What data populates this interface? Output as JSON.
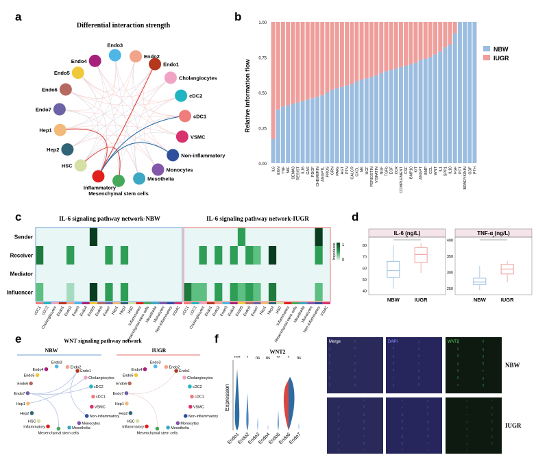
{
  "panel_letters": {
    "a": "a",
    "b": "b",
    "c": "c",
    "d": "d",
    "e": "e",
    "f": "f"
  },
  "colors": {
    "nbw": "#9bbde0",
    "iugr": "#ef9e9b",
    "heat_dark": "#0a3d1f",
    "heat_mid": "#2e9e57",
    "heat_light": "#bfe7cf",
    "violin_blue": "#2d6ca3",
    "violin_red": "#d9463f"
  },
  "panel_a": {
    "title": "Differential interaction strength",
    "nodes": [
      {
        "label": "Endo1",
        "color": "#b5381d"
      },
      {
        "label": "Cholangiocytes",
        "color": "#f0a3c4"
      },
      {
        "label": "cDC2",
        "color": "#21b5c1"
      },
      {
        "label": "cDC1",
        "color": "#ef7d7b"
      },
      {
        "label": "VSMC",
        "color": "#d8336e"
      },
      {
        "label": "Non-inflammatory",
        "color": "#2e4f9c"
      },
      {
        "label": "Monocytes",
        "color": "#8256a8"
      },
      {
        "label": "Mesothelia",
        "color": "#3ca8c3"
      },
      {
        "label": "Mesenchymal stem cells",
        "color": "#46a85a"
      },
      {
        "label": "Inflammatory",
        "color": "#e0201f"
      },
      {
        "label": "HSC",
        "color": "#d4e0a4"
      },
      {
        "label": "Hep2",
        "color": "#2f6375"
      },
      {
        "label": "Hep1",
        "color": "#f3b978"
      },
      {
        "label": "Endo7",
        "color": "#6b63a6"
      },
      {
        "label": "Endo6",
        "color": "#b5695f"
      },
      {
        "label": "Endo5",
        "color": "#f0c93a"
      },
      {
        "label": "Endo4",
        "color": "#a7207c"
      },
      {
        "label": "Endo3",
        "color": "#4fb6e6"
      },
      {
        "label": "Endo2",
        "color": "#f2a48a"
      }
    ]
  },
  "panel_b": {
    "chart_data": {
      "type": "bar",
      "stacked": true,
      "ylabel": "Relative information flow",
      "ylim": [
        0,
        1
      ],
      "yticks": [
        "0.00",
        "0.25",
        "0.50",
        "0.75",
        "1.00"
      ],
      "categories": [
        "IL6",
        "EGN",
        "TNF",
        "MIF",
        "SEMA3",
        "RESIST",
        "IL16",
        "GAS",
        "PDGF",
        "CHEMERIN",
        "ANGPTL",
        "PROS",
        "GRN",
        "PARs",
        "AGT",
        "PTN",
        "CALCR",
        "CXCL",
        "MK",
        "HGF",
        "PERIOSTIN",
        "VISFATIN",
        "NGF",
        "TGFb",
        "EGF",
        "XCR",
        "COMPLEMENT",
        "CSF",
        "BMP10",
        "KIT",
        "ANGPT",
        "BMP",
        "CCL",
        "WNT",
        "IL1",
        "SPP1",
        "IL10",
        "FGF",
        "PCT",
        "BRADYKININ",
        "GDF",
        "PTH"
      ],
      "series": [
        {
          "name": "NBW",
          "values": [
            0.17,
            0.38,
            0.4,
            0.41,
            0.42,
            0.43,
            0.44,
            0.45,
            0.46,
            0.47,
            0.48,
            0.5,
            0.52,
            0.53,
            0.54,
            0.55,
            0.56,
            0.58,
            0.59,
            0.6,
            0.61,
            0.62,
            0.64,
            0.65,
            0.66,
            0.67,
            0.68,
            0.69,
            0.7,
            0.71,
            0.73,
            0.74,
            0.75,
            0.77,
            0.79,
            0.82,
            0.84,
            0.92,
            1.0,
            1.0,
            1.0,
            1.0
          ]
        },
        {
          "name": "IUGR",
          "values": [
            0.83,
            0.62,
            0.6,
            0.59,
            0.58,
            0.57,
            0.56,
            0.55,
            0.54,
            0.53,
            0.52,
            0.5,
            0.48,
            0.47,
            0.46,
            0.45,
            0.44,
            0.42,
            0.41,
            0.4,
            0.39,
            0.38,
            0.36,
            0.35,
            0.34,
            0.33,
            0.32,
            0.31,
            0.3,
            0.29,
            0.27,
            0.26,
            0.25,
            0.23,
            0.21,
            0.18,
            0.16,
            0.08,
            0,
            0,
            0,
            0
          ]
        }
      ],
      "legend_position": "right"
    }
  },
  "panel_c": {
    "titles": [
      "IL-6 signaling pathway network-NBW",
      "IL-6 signaling pathway network-IUGR"
    ],
    "rows": [
      "Sender",
      "Receiver",
      "Mediator",
      "Influencer"
    ],
    "columns_left": [
      "cDC1",
      "cDC2",
      "Cholangiocytes",
      "Endo1",
      "Endo2",
      "Endo3",
      "Endo4",
      "Endo5",
      "Endo6",
      "Endo7",
      "Hep1",
      "Hep2",
      "HSC",
      "Inflammatory",
      "Mesenchymal stem cells",
      "Mesothelia",
      "Monocytes",
      "Non-inflammatory",
      "VSMC"
    ],
    "columns_right": [
      "cDC1",
      "cDC2",
      "Cholangiocytes",
      "Endo1",
      "Endo2",
      "Endo3",
      "Endo4",
      "Endo5",
      "Endo6",
      "Endo7",
      "Hep1",
      "Hep2",
      "HSC",
      "Inflammatory",
      "Mesenchymal stem cells",
      "Mesothelia",
      "Monocytes",
      "Non-inflammatory",
      "VSMC"
    ],
    "chart_data": {
      "type": "heatmap",
      "legend_title": "Importance",
      "legend_ticks": [
        "1",
        "0"
      ],
      "nbw": [
        [
          0,
          0,
          0,
          0,
          0,
          0,
          0,
          1,
          0,
          0,
          0,
          0,
          0,
          0,
          0,
          0,
          0,
          0,
          0
        ],
        [
          0.9,
          0,
          0,
          0,
          0.75,
          0,
          0,
          0,
          0,
          0.75,
          0,
          0.75,
          0,
          0,
          0,
          0,
          0,
          0,
          0
        ],
        [
          0,
          0,
          0,
          0,
          0,
          0,
          0,
          0,
          0,
          0,
          0,
          0,
          0,
          0,
          0,
          0,
          0,
          0,
          0
        ],
        [
          0.45,
          0,
          0,
          0,
          0.35,
          0,
          0,
          0.95,
          0,
          0.6,
          0,
          0.6,
          0,
          0,
          0,
          0,
          0,
          0,
          0
        ]
      ],
      "iugr": [
        [
          0,
          0,
          0,
          0,
          0,
          0,
          0,
          0.7,
          0,
          0,
          0,
          0,
          0,
          0,
          0,
          0,
          0,
          1,
          0
        ],
        [
          0,
          0,
          0.6,
          0,
          0.6,
          0,
          0.6,
          0,
          0.6,
          0.4,
          0,
          0.95,
          0,
          0,
          0,
          0,
          0,
          0.7,
          0
        ],
        [
          0,
          0,
          0,
          0,
          0,
          0,
          0,
          0,
          0,
          0,
          0,
          0,
          0,
          0,
          0,
          0,
          0,
          0,
          0
        ],
        [
          0.9,
          0.5,
          0.4,
          0,
          0.6,
          0,
          0.6,
          0.5,
          0.6,
          0.4,
          0,
          0.9,
          0,
          0,
          0,
          0,
          0,
          0.5,
          0
        ]
      ]
    }
  },
  "panel_d": {
    "chart_data": [
      {
        "type": "box",
        "title": "IL-6 (ng/L)",
        "categories": [
          "NBW",
          "IUGR"
        ],
        "yticks": [
          "40",
          "50",
          "60",
          "70",
          "80"
        ],
        "ylim": [
          38,
          86
        ],
        "boxes": [
          {
            "q1": 52,
            "median": 58,
            "q3": 66,
            "min": 42,
            "max": 80
          },
          {
            "q1": 65,
            "median": 72,
            "q3": 78,
            "min": 56,
            "max": 82
          }
        ],
        "significance": "*"
      },
      {
        "type": "box",
        "title": "TNF-α (ng/L)",
        "categories": [
          "NBW",
          "IUGR"
        ],
        "yticks": [
          "250",
          "300",
          "350",
          "400"
        ],
        "ylim": [
          235,
          405
        ],
        "boxes": [
          {
            "q1": 262,
            "median": 270,
            "q3": 282,
            "min": 245,
            "max": 320
          },
          {
            "q1": 295,
            "median": 310,
            "q3": 325,
            "min": 270,
            "max": 335
          }
        ],
        "significance": "*"
      }
    ]
  },
  "panel_e": {
    "title": "WNT signaling pathway network",
    "subtitles": [
      "NBW",
      "IUGR"
    ]
  },
  "panel_f": {
    "violin_title": "WNT2",
    "ylabel": "Expression",
    "categories": [
      "Endo1",
      "Endo2",
      "Endo3",
      "Endo4",
      "Endo5",
      "Endo6",
      "Endo7"
    ],
    "significance": [
      "****",
      "*",
      "ns",
      "ns",
      "**",
      "*",
      "ns"
    ],
    "image_labels": [
      "Merge",
      "DAPI",
      "WNT2"
    ],
    "row_labels": [
      "NBW",
      "IUGR"
    ]
  }
}
